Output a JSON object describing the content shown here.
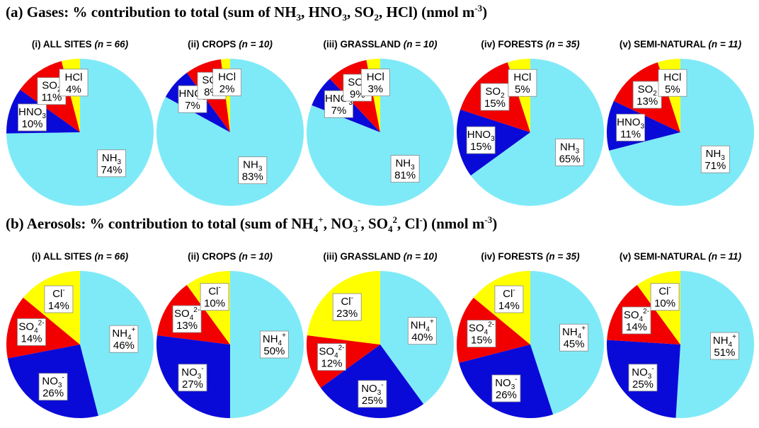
{
  "colors": {
    "NH": "#7FEAF7",
    "NO": "#0A0AD8",
    "SO": "#F20000",
    "HCl": "#FFFF00",
    "background": "#ffffff"
  },
  "section_a": {
    "prefix": "(a) Gases: % contribution to total (sum of NH",
    "s1": "3",
    "m1": ", HNO",
    "s2": "3",
    "m2": ", SO",
    "s3": "2",
    "m3": ", HCl) (nmol m",
    "sup": "-3",
    "end": ")"
  },
  "section_b": {
    "prefix": "(b) Aerosols: % contribution to total (sum of NH",
    "s1": "4",
    "p1": "+",
    "m1": ", NO",
    "s2": "3",
    "p2": "-",
    "m2": ", SO",
    "s3": "4",
    "p3": "2",
    "m3": ", Cl",
    "p4": "-",
    "m4": ") (nmol m",
    "sup": "-3",
    "end": ")"
  },
  "chart_data": [
    {
      "type": "pie",
      "group": "gases",
      "title": "(i) ALL SITES",
      "n_text": "(n = 66)",
      "slices": [
        {
          "label": "NH3",
          "value": 74
        },
        {
          "label": "HNO3",
          "value": 10
        },
        {
          "label": "SO2",
          "value": 11
        },
        {
          "label": "HCl",
          "value": 4
        }
      ]
    },
    {
      "type": "pie",
      "group": "gases",
      "title": "(ii) CROPS",
      "n_text": "(n = 10)",
      "slices": [
        {
          "label": "NH3",
          "value": 83
        },
        {
          "label": "HNO3",
          "value": 7
        },
        {
          "label": "SO2",
          "value": 8
        },
        {
          "label": "HCl",
          "value": 2
        }
      ]
    },
    {
      "type": "pie",
      "group": "gases",
      "title": "(iii) GRASSLAND",
      "n_text": "(n = 10)",
      "slices": [
        {
          "label": "NH3",
          "value": 81
        },
        {
          "label": "HNO3",
          "value": 7
        },
        {
          "label": "SO2",
          "value": 9
        },
        {
          "label": "HCl",
          "value": 3
        }
      ]
    },
    {
      "type": "pie",
      "group": "gases",
      "title": "(iv) FORESTS",
      "n_text": "(n = 35)",
      "slices": [
        {
          "label": "NH3",
          "value": 65
        },
        {
          "label": "HNO3",
          "value": 15
        },
        {
          "label": "SO2",
          "value": 15
        },
        {
          "label": "HCl",
          "value": 5
        }
      ]
    },
    {
      "type": "pie",
      "group": "gases",
      "title": "(v) SEMI-NATURAL",
      "n_text": "(n = 11)",
      "slices": [
        {
          "label": "NH3",
          "value": 71
        },
        {
          "label": "HNO3",
          "value": 11
        },
        {
          "label": "SO2",
          "value": 13
        },
        {
          "label": "HCl",
          "value": 5
        }
      ]
    },
    {
      "type": "pie",
      "group": "aerosols",
      "title": "(i) ALL SITES",
      "n_text": "(n = 66)",
      "slices": [
        {
          "label": "NH4+",
          "value": 46
        },
        {
          "label": "NO3-",
          "value": 26
        },
        {
          "label": "SO42-",
          "value": 14
        },
        {
          "label": "Cl-",
          "value": 14
        }
      ]
    },
    {
      "type": "pie",
      "group": "aerosols",
      "title": "(ii) CROPS",
      "n_text": "(n = 10)",
      "slices": [
        {
          "label": "NH4+",
          "value": 50
        },
        {
          "label": "NO3-",
          "value": 27
        },
        {
          "label": "SO42-",
          "value": 13
        },
        {
          "label": "Cl-",
          "value": 10
        }
      ]
    },
    {
      "type": "pie",
      "group": "aerosols",
      "title": "(iii) GRASSLAND",
      "n_text": "(n = 10)",
      "slices": [
        {
          "label": "NH4+",
          "value": 40
        },
        {
          "label": "NO3-",
          "value": 25
        },
        {
          "label": "SO42-",
          "value": 12
        },
        {
          "label": "Cl-",
          "value": 23
        }
      ]
    },
    {
      "type": "pie",
      "group": "aerosols",
      "title": "(iv) FORESTS",
      "n_text": "(n = 35)",
      "slices": [
        {
          "label": "NH4+",
          "value": 45
        },
        {
          "label": "NO3-",
          "value": 26
        },
        {
          "label": "SO42-",
          "value": 15
        },
        {
          "label": "Cl-",
          "value": 14
        }
      ]
    },
    {
      "type": "pie",
      "group": "aerosols",
      "title": "(v) SEMI-NATURAL",
      "n_text": "(n = 11)",
      "slices": [
        {
          "label": "NH4+",
          "value": 51
        },
        {
          "label": "NO3-",
          "value": 25
        },
        {
          "label": "SO42-",
          "value": 14
        },
        {
          "label": "Cl-",
          "value": 10
        }
      ]
    }
  ]
}
